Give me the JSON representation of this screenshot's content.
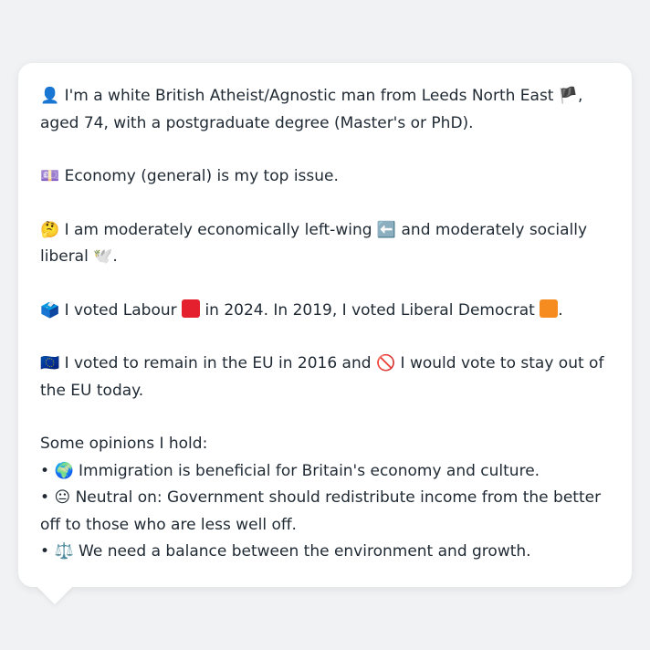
{
  "profile": {
    "line1_icon": "👤",
    "line1_text_a": "I'm a white British Atheist/Agnostic man from Leeds North East",
    "line1_flag": "🏴",
    "line1_text_b": ", aged 74, with a postgraduate degree (Master's or PhD).",
    "issue_icon": "💷",
    "issue_text": "Economy (general) is my top issue.",
    "ideology_icon": "🤔",
    "ideology_text_a": "I am moderately economically left-wing",
    "ideology_left_icon": "⬅️",
    "ideology_text_b": "and moderately socially liberal",
    "ideology_liberal_icon": "🕊️",
    "ideology_text_c": ".",
    "vote_icon": "🗳️",
    "vote_text_a": "I voted Labour",
    "vote_text_b": "in 2024. In 2019, I voted Liberal Democrat",
    "vote_text_c": ".",
    "eu_icon": "🇪🇺",
    "eu_text_a": "I voted to remain in the EU in 2016 and",
    "eu_no_icon": "🚫",
    "eu_text_b": "I would vote to stay out of the EU today.",
    "opinions_heading": "Some opinions I hold:",
    "opinions": [
      {
        "bullet": "•",
        "icon": "🌍",
        "text": "Immigration is beneficial for Britain's economy and culture."
      },
      {
        "bullet": "•",
        "icon": "😐",
        "text": "Neutral on: Government should redistribute income from the better off to those who are less well off."
      },
      {
        "bullet": "•",
        "icon": "⚖️",
        "text": "We need a balance between the environment and growth."
      }
    ]
  },
  "colors": {
    "labour": "#e5202e",
    "libdem": "#f68b1f",
    "background": "#f1f2f4",
    "card": "#ffffff"
  }
}
